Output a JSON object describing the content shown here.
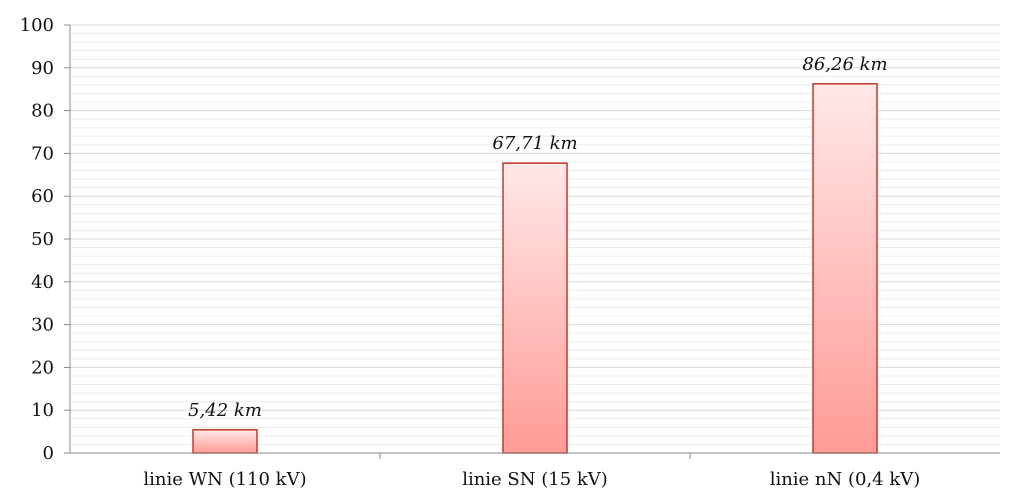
{
  "chart_data": {
    "type": "bar",
    "categories": [
      "linie WN (110 kV)",
      "linie SN (15 kV)",
      "linie nN (0,4 kV)"
    ],
    "values": [
      5.42,
      67.71,
      86.26
    ],
    "data_labels": [
      "5,42 km",
      "67,71 km",
      "86,26 km"
    ],
    "y_ticks": [
      "0",
      "10",
      "20",
      "30",
      "40",
      "50",
      "60",
      "70",
      "80",
      "90",
      "100"
    ],
    "ylim": [
      0,
      100
    ],
    "major_step": 10,
    "minor_step": 2,
    "grid": true,
    "colors": {
      "bar_top": "#ffe8e8",
      "bar_bottom": "#ff9b96",
      "bar_stroke": "#c0392b",
      "grid_major": "#d9d9d9",
      "grid_minor": "#ececec",
      "axis": "#888888"
    }
  }
}
